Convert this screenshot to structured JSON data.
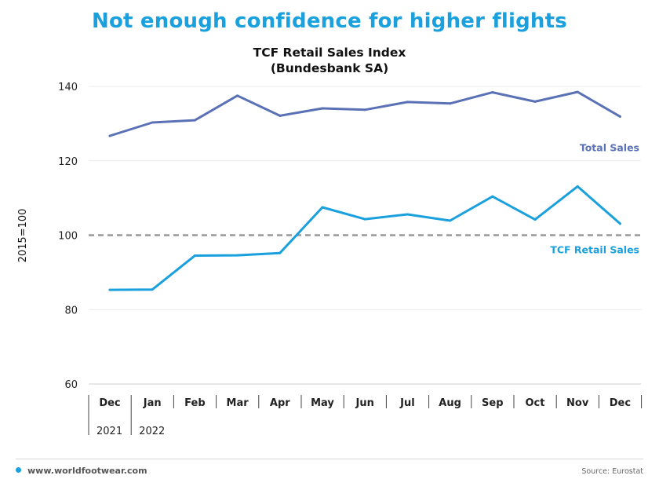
{
  "headline": "Not enough confidence for higher flights",
  "chart_data": {
    "type": "line",
    "title": "TCF Retail Sales Index",
    "subtitle": "(Bundesbank SA)",
    "ylabel": "2015=100",
    "ylim": [
      60,
      140
    ],
    "yticks": [
      60,
      80,
      100,
      120,
      140
    ],
    "categories": [
      "Dec",
      "Jan",
      "Feb",
      "Mar",
      "Apr",
      "May",
      "Jun",
      "Jul",
      "Aug",
      "Sep",
      "Oct",
      "Nov",
      "Dec"
    ],
    "year_labels": [
      {
        "label": "2021",
        "start_index": 0
      },
      {
        "label": "2022",
        "start_index": 1
      }
    ],
    "reference_line": {
      "value": 100,
      "style": "dashed",
      "color": "#999999"
    },
    "grid": "horizontal",
    "series": [
      {
        "name": "Total Sales",
        "color": "#5a72b5",
        "values": [
          126.7,
          130.3,
          130.9,
          137.5,
          132.1,
          134.1,
          133.7,
          135.8,
          135.4,
          138.4,
          135.9,
          138.5,
          131.9
        ]
      },
      {
        "name": "TCF Retail Sales",
        "color": "#1aa0dc",
        "values": [
          85.3,
          85.4,
          94.5,
          94.6,
          95.2,
          107.5,
          104.3,
          105.6,
          103.9,
          110.4,
          104.2,
          113.1,
          103.1
        ]
      }
    ]
  },
  "footer": {
    "website": "www.worldfootwear.com",
    "source": "Source: Eurostat"
  }
}
